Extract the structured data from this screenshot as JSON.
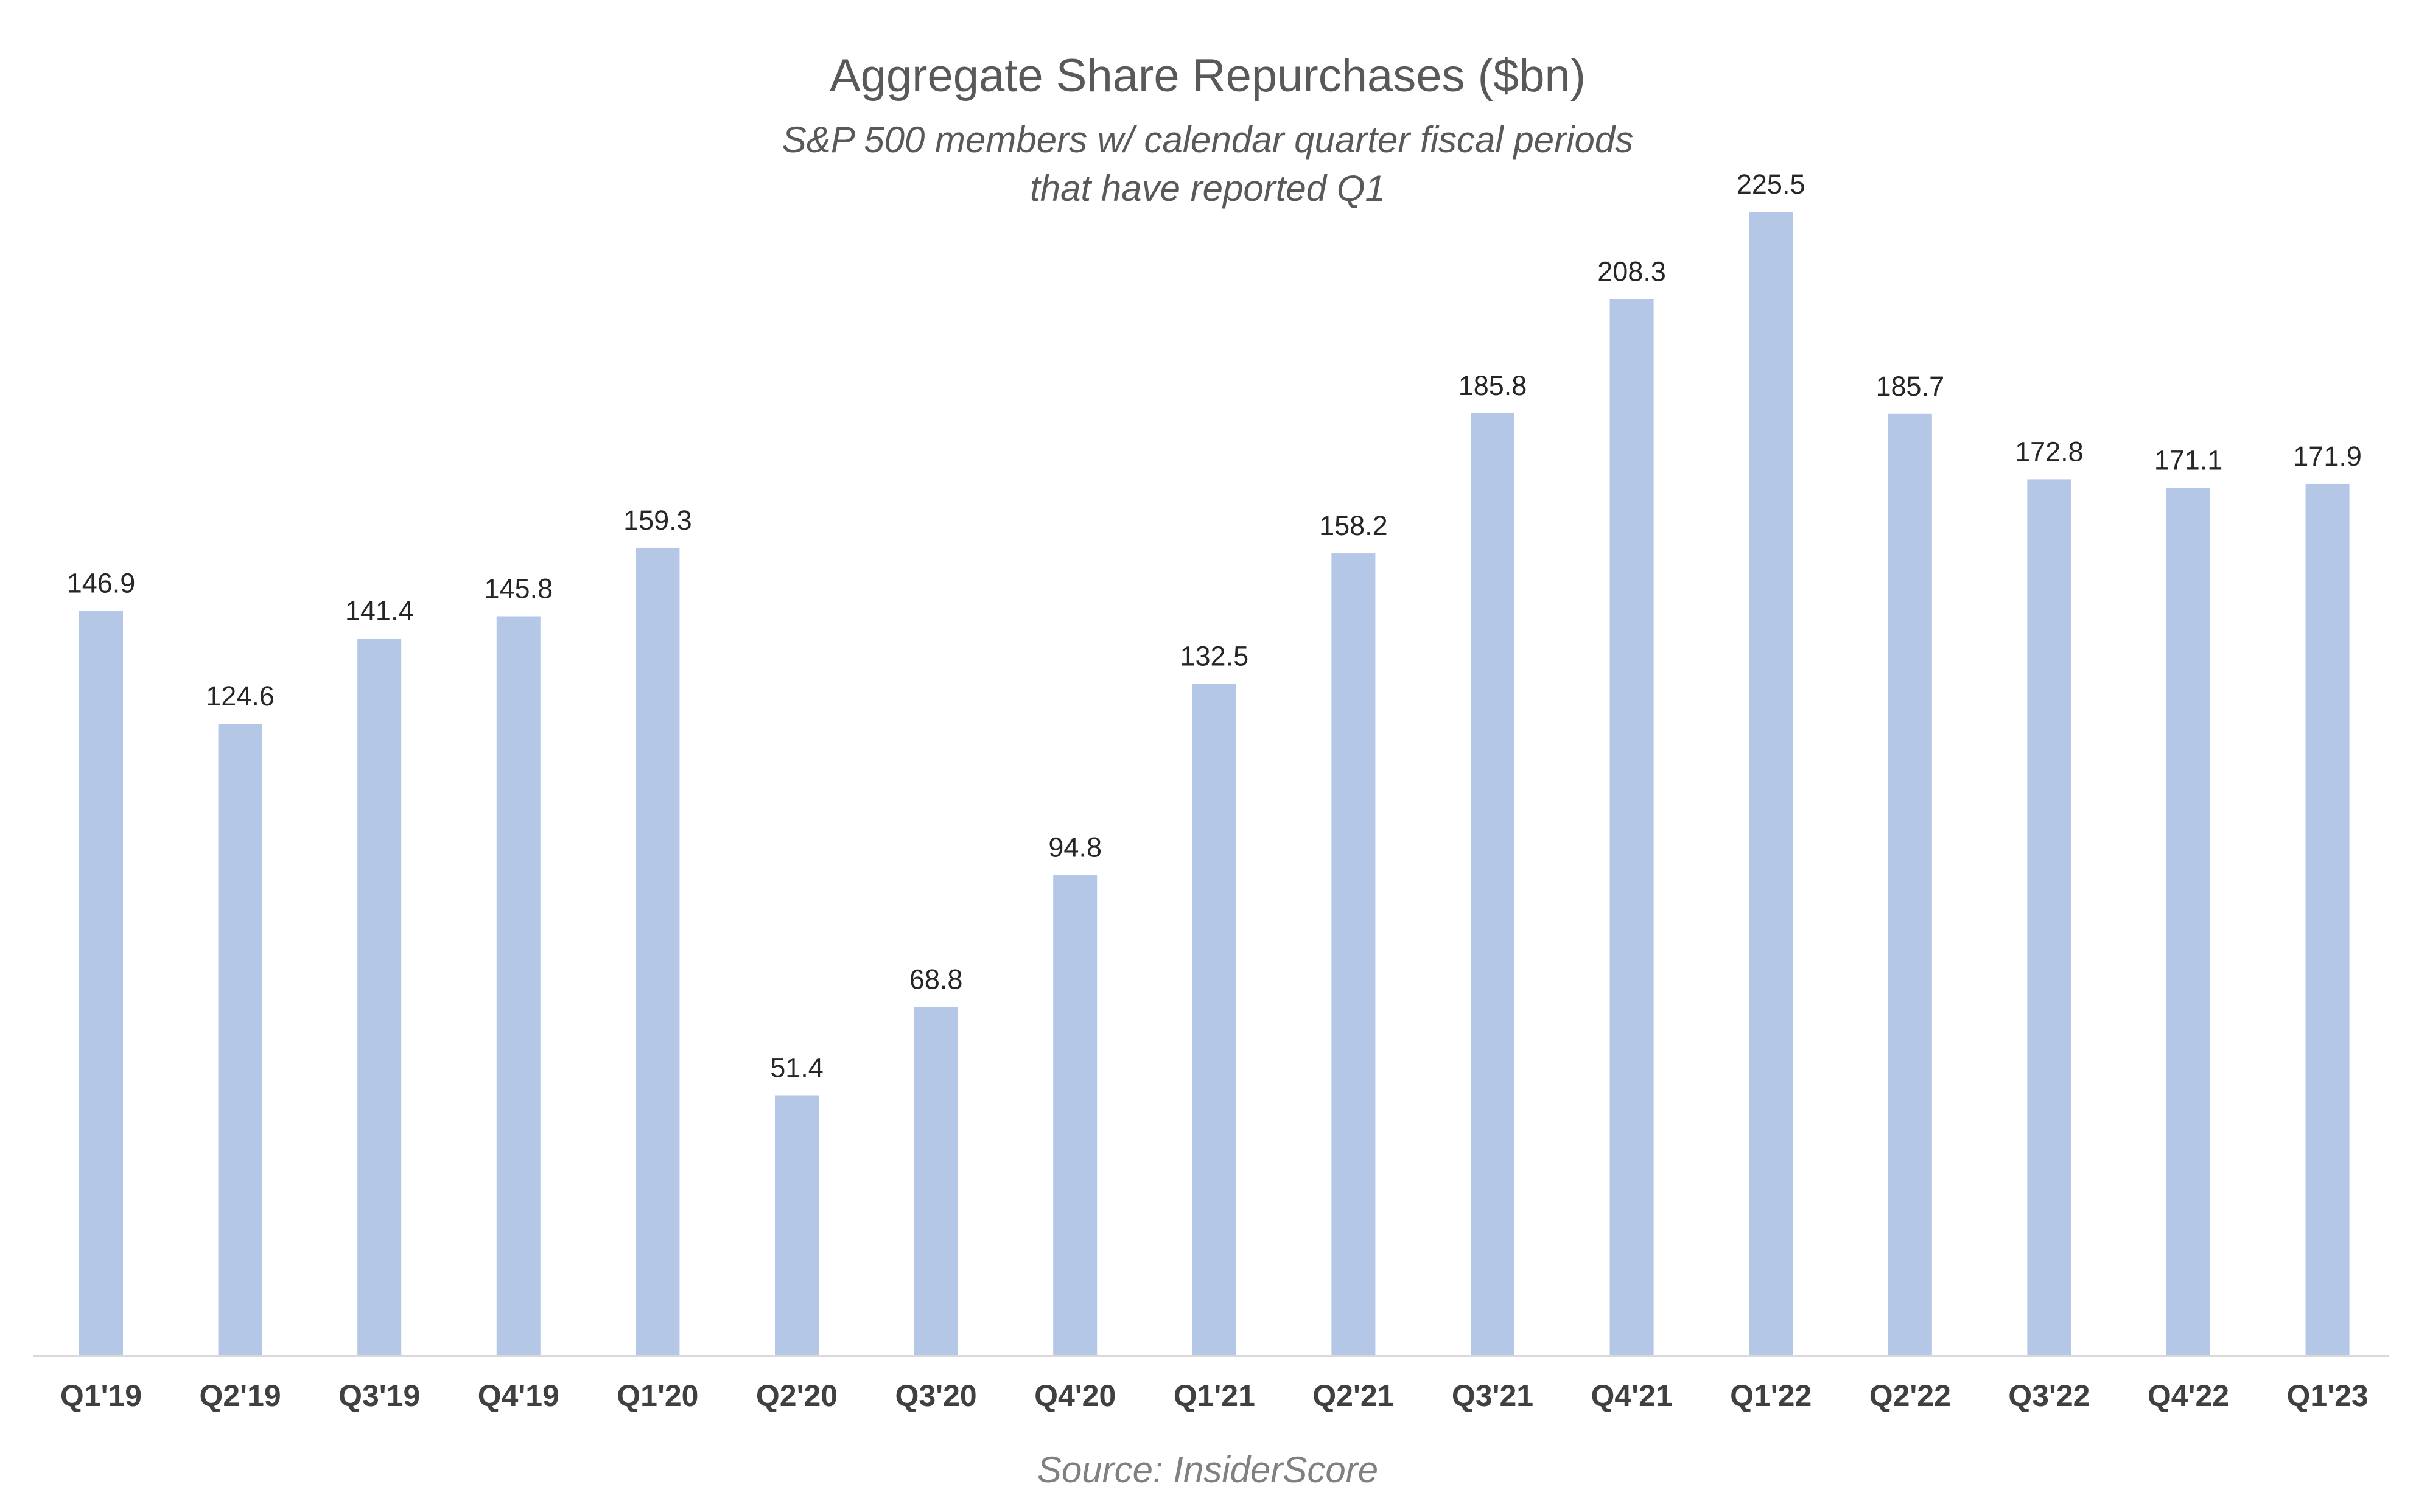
{
  "chart_data": {
    "type": "bar",
    "title": "Aggregate Share Repurchases ($bn)",
    "subtitle_lines": [
      "S&P 500 members w/ calendar quarter fiscal periods",
      "that have reported Q1"
    ],
    "source": "Source: InsiderScore",
    "categories": [
      "Q1'19",
      "Q2'19",
      "Q3'19",
      "Q4'19",
      "Q1'20",
      "Q2'20",
      "Q3'20",
      "Q4'20",
      "Q1'21",
      "Q2'21",
      "Q3'21",
      "Q4'21",
      "Q1'22",
      "Q2'22",
      "Q3'22",
      "Q4'22",
      "Q1'23"
    ],
    "values": [
      146.9,
      124.6,
      141.4,
      145.8,
      159.3,
      51.4,
      68.8,
      94.8,
      132.5,
      158.2,
      185.8,
      208.3,
      225.5,
      185.7,
      172.8,
      171.1,
      171.9
    ],
    "value_labels": [
      "146.9",
      "124.6",
      "141.4",
      "145.8",
      "159.3",
      "51.4",
      "68.8",
      "94.8",
      "132.5",
      "158.2",
      "185.8",
      "208.3",
      "225.5",
      "185.7",
      "172.8",
      "171.1",
      "171.9"
    ],
    "xlabel": "",
    "ylabel": "",
    "ylim": [
      0,
      225.5
    ],
    "grid": false,
    "legend": "none",
    "bar_color": "#b4c7e7",
    "axis_color": "#d9d9d9"
  }
}
